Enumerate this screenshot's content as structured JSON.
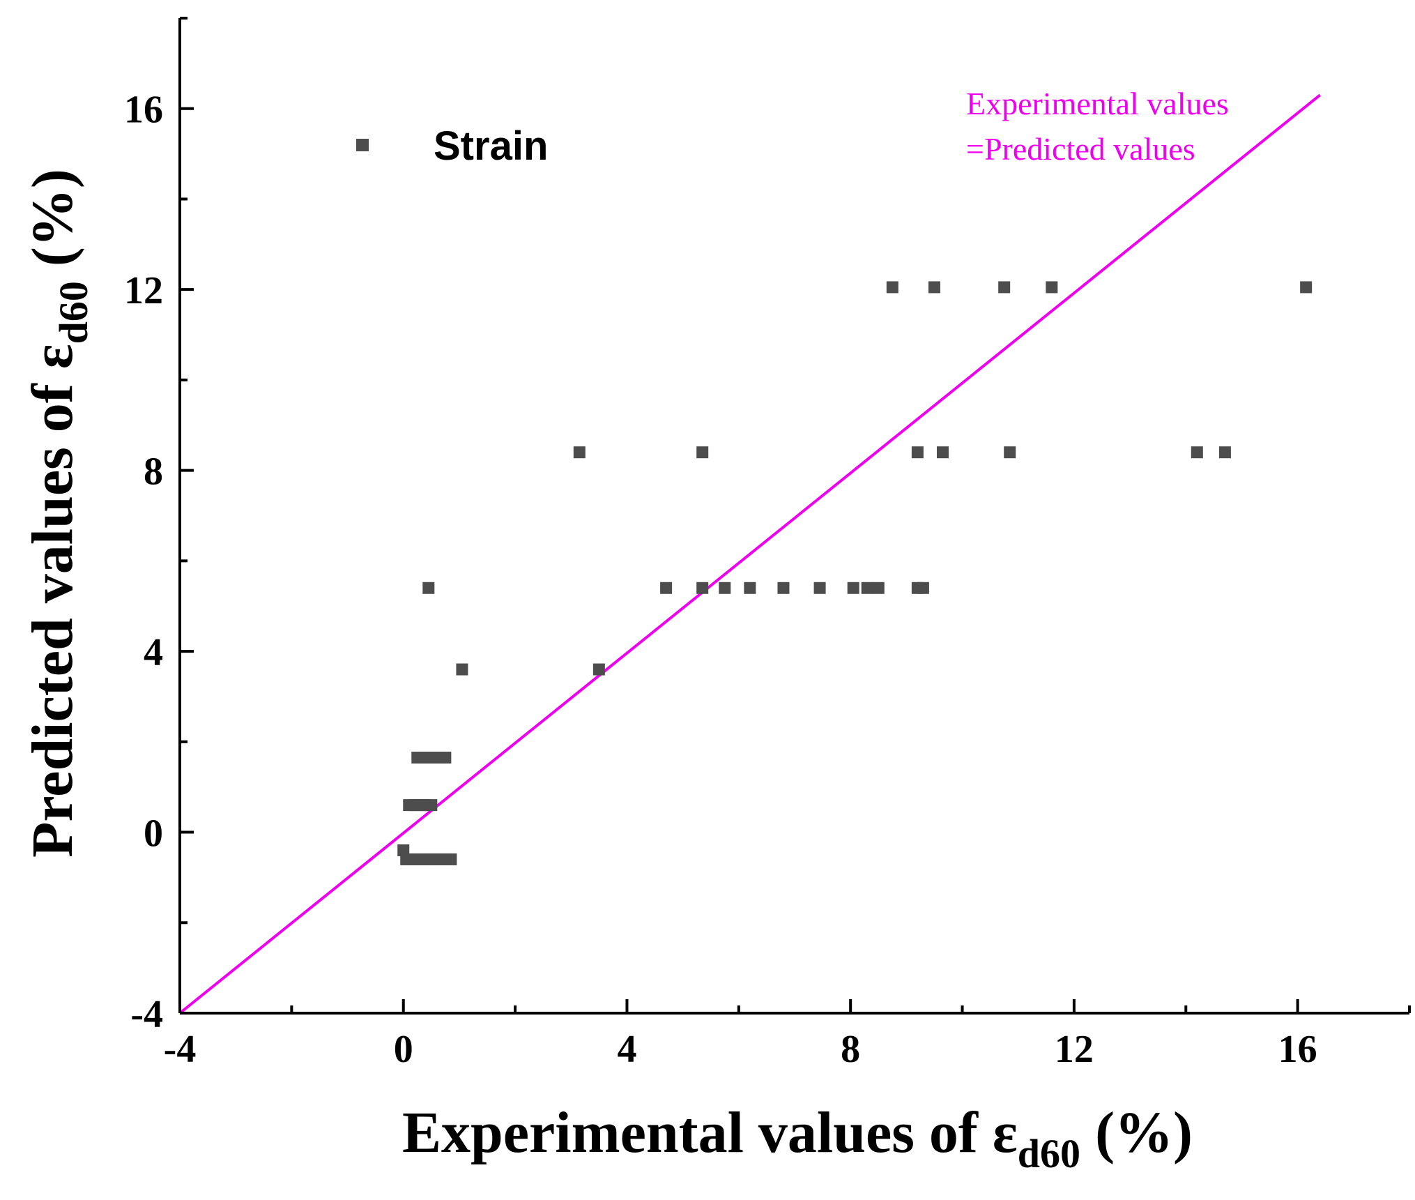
{
  "chart_data": {
    "type": "scatter",
    "title": "",
    "xlabel": {
      "main": "Experimental values of ε",
      "sub": "d60",
      "suffix": " (%)"
    },
    "ylabel": {
      "main": "Predicted values of ε",
      "sub": "d60",
      "suffix": " (%)"
    },
    "xlim": [
      -4,
      18
    ],
    "ylim": [
      -4,
      18
    ],
    "x_ticks": [
      -4,
      0,
      4,
      8,
      12,
      16
    ],
    "y_ticks": [
      -4,
      0,
      4,
      8,
      12,
      16
    ],
    "x_tick_labels": [
      "-4",
      "0",
      "4",
      "8",
      "12",
      "16"
    ],
    "y_tick_labels": [
      "-4",
      "0",
      "4",
      "8",
      "12",
      "16"
    ],
    "grid": false,
    "legend_placement": "top-left",
    "series": [
      {
        "name": "Strain",
        "marker": "square",
        "color": "#4d4d4d",
        "points": [
          [
            0.0,
            -0.4
          ],
          [
            0.05,
            -0.6
          ],
          [
            0.15,
            -0.6
          ],
          [
            0.25,
            -0.6
          ],
          [
            0.35,
            -0.6
          ],
          [
            0.45,
            -0.6
          ],
          [
            0.55,
            -0.6
          ],
          [
            0.65,
            -0.6
          ],
          [
            0.75,
            -0.6
          ],
          [
            0.85,
            -0.6
          ],
          [
            0.1,
            0.6
          ],
          [
            0.2,
            0.6
          ],
          [
            0.3,
            0.6
          ],
          [
            0.4,
            0.6
          ],
          [
            0.5,
            0.6
          ],
          [
            0.25,
            1.65
          ],
          [
            0.35,
            1.65
          ],
          [
            0.45,
            1.65
          ],
          [
            0.55,
            1.65
          ],
          [
            0.65,
            1.65
          ],
          [
            0.75,
            1.65
          ],
          [
            0.45,
            5.4
          ],
          [
            1.05,
            3.6
          ],
          [
            3.5,
            3.6
          ],
          [
            3.15,
            8.4
          ],
          [
            5.35,
            8.4
          ],
          [
            4.7,
            5.4
          ],
          [
            5.35,
            5.4
          ],
          [
            5.75,
            5.4
          ],
          [
            6.2,
            5.4
          ],
          [
            6.8,
            5.4
          ],
          [
            7.45,
            5.4
          ],
          [
            8.05,
            5.4
          ],
          [
            8.3,
            5.4
          ],
          [
            8.5,
            5.4
          ],
          [
            9.2,
            5.4
          ],
          [
            9.3,
            5.4
          ],
          [
            9.2,
            8.4
          ],
          [
            9.65,
            8.4
          ],
          [
            10.85,
            8.4
          ],
          [
            14.2,
            8.4
          ],
          [
            14.7,
            8.4
          ],
          [
            8.75,
            12.05
          ],
          [
            9.5,
            12.05
          ],
          [
            10.75,
            12.05
          ],
          [
            11.6,
            12.05
          ],
          [
            16.15,
            12.05
          ]
        ]
      },
      {
        "name": "Experimental values =Predicted values",
        "type": "line",
        "color": "#ee00ee",
        "x": [
          -4,
          16.4
        ],
        "y": [
          -4,
          16.3
        ]
      }
    ],
    "legend": {
      "label": "Strain"
    },
    "annotation": {
      "line1": "Experimental values",
      "line2": "=Predicted values"
    }
  }
}
